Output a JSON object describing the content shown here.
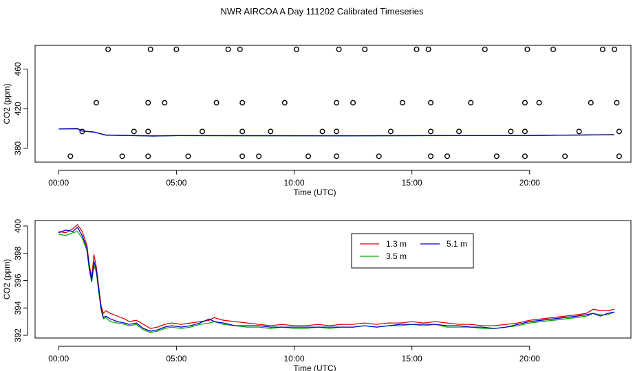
{
  "title": "NWR AIRCOA A  Day 111202  Calibrated Timeseries",
  "chart_data": [
    {
      "type": "scatter",
      "xlabel": "Time (UTC)",
      "ylabel": "CO2 (ppm)",
      "xlim": [
        -1.0,
        24.3
      ],
      "ylim": [
        366,
        484
      ],
      "xticks": [
        0,
        5,
        10,
        15,
        20
      ],
      "xtick_labels": [
        "00:00",
        "05:00",
        "10:00",
        "15:00",
        "20:00"
      ],
      "yticks": [
        380,
        420,
        460
      ],
      "yline_value": 392.9,
      "line_series": [
        {
          "name": "1.3 m",
          "color": "#e00000",
          "x": [
            0,
            0.8,
            1.0,
            1.5,
            2.0,
            3.0,
            4.0,
            5.0,
            8.0,
            12.0,
            16.0,
            20.0,
            23.6
          ],
          "y": [
            399.5,
            400.1,
            397.5,
            396.5,
            393.5,
            393.0,
            392.6,
            392.9,
            392.8,
            392.7,
            392.9,
            393.0,
            393.8
          ]
        },
        {
          "name": "3.5 m",
          "color": "#00b000",
          "x": [
            0,
            0.8,
            1.0,
            1.5,
            2.0,
            3.0,
            4.0,
            5.0,
            8.0,
            12.0,
            16.0,
            20.0,
            23.6
          ],
          "y": [
            399.4,
            399.6,
            397.3,
            396.3,
            393.2,
            392.8,
            392.3,
            392.7,
            392.6,
            392.6,
            392.7,
            392.9,
            393.6
          ]
        },
        {
          "name": "5.1 m",
          "color": "#0000cc",
          "x": [
            0,
            0.8,
            1.0,
            1.5,
            2.0,
            3.0,
            4.0,
            5.0,
            8.0,
            12.0,
            16.0,
            20.0,
            23.6
          ],
          "y": [
            399.5,
            399.8,
            397.4,
            396.4,
            393.3,
            392.9,
            392.4,
            392.8,
            392.7,
            392.6,
            392.8,
            392.9,
            393.7
          ]
        }
      ],
      "points": [
        {
          "x": 0.5,
          "y": 372
        },
        {
          "x": 2.1,
          "y": 480
        },
        {
          "x": 2.7,
          "y": 372
        },
        {
          "x": 3.8,
          "y": 372
        },
        {
          "x": 3.9,
          "y": 480
        },
        {
          "x": 5.0,
          "y": 480
        },
        {
          "x": 5.5,
          "y": 372
        },
        {
          "x": 7.2,
          "y": 480
        },
        {
          "x": 7.7,
          "y": 480
        },
        {
          "x": 7.8,
          "y": 372
        },
        {
          "x": 8.5,
          "y": 372
        },
        {
          "x": 10.1,
          "y": 480
        },
        {
          "x": 10.6,
          "y": 372
        },
        {
          "x": 11.8,
          "y": 372
        },
        {
          "x": 11.9,
          "y": 480
        },
        {
          "x": 13.0,
          "y": 480
        },
        {
          "x": 13.6,
          "y": 372
        },
        {
          "x": 15.2,
          "y": 480
        },
        {
          "x": 15.7,
          "y": 480
        },
        {
          "x": 15.8,
          "y": 372
        },
        {
          "x": 16.5,
          "y": 372
        },
        {
          "x": 18.1,
          "y": 480
        },
        {
          "x": 18.6,
          "y": 372
        },
        {
          "x": 19.8,
          "y": 372
        },
        {
          "x": 19.9,
          "y": 480
        },
        {
          "x": 21.0,
          "y": 480
        },
        {
          "x": 21.5,
          "y": 372
        },
        {
          "x": 23.1,
          "y": 480
        },
        {
          "x": 23.6,
          "y": 480
        },
        {
          "x": 23.8,
          "y": 372
        },
        {
          "x": 1.6,
          "y": 426
        },
        {
          "x": 3.8,
          "y": 426
        },
        {
          "x": 4.5,
          "y": 426
        },
        {
          "x": 6.7,
          "y": 426
        },
        {
          "x": 7.8,
          "y": 426
        },
        {
          "x": 9.6,
          "y": 426
        },
        {
          "x": 11.8,
          "y": 426
        },
        {
          "x": 12.5,
          "y": 426
        },
        {
          "x": 14.6,
          "y": 426
        },
        {
          "x": 15.8,
          "y": 426
        },
        {
          "x": 17.5,
          "y": 426
        },
        {
          "x": 19.8,
          "y": 426
        },
        {
          "x": 20.4,
          "y": 426
        },
        {
          "x": 22.6,
          "y": 426
        },
        {
          "x": 23.7,
          "y": 426
        },
        {
          "x": 1.0,
          "y": 397
        },
        {
          "x": 3.2,
          "y": 397
        },
        {
          "x": 3.8,
          "y": 397
        },
        {
          "x": 6.1,
          "y": 397
        },
        {
          "x": 7.8,
          "y": 397
        },
        {
          "x": 9.0,
          "y": 397
        },
        {
          "x": 11.2,
          "y": 397
        },
        {
          "x": 11.8,
          "y": 397
        },
        {
          "x": 14.1,
          "y": 397
        },
        {
          "x": 15.8,
          "y": 397
        },
        {
          "x": 17.0,
          "y": 397
        },
        {
          "x": 19.2,
          "y": 397
        },
        {
          "x": 19.8,
          "y": 397
        },
        {
          "x": 22.1,
          "y": 397
        },
        {
          "x": 23.8,
          "y": 397
        }
      ]
    },
    {
      "type": "line",
      "xlabel": "Time (UTC)",
      "ylabel": "CO2 (ppm)",
      "xlim": [
        -1.0,
        24.3
      ],
      "ylim": [
        391.8,
        400.4
      ],
      "xticks": [
        0,
        5,
        10,
        15,
        20
      ],
      "xtick_labels": [
        "00:00",
        "05:00",
        "10:00",
        "15:00",
        "20:00"
      ],
      "yticks": [
        392,
        394,
        396,
        398,
        400
      ],
      "legend": "top-center",
      "series": [
        {
          "name": "1.3 m",
          "color": "#e00000",
          "x": [
            0.0,
            0.3,
            0.6,
            0.8,
            1.0,
            1.2,
            1.3,
            1.4,
            1.5,
            1.6,
            1.7,
            1.8,
            1.9,
            2.0,
            2.2,
            2.5,
            2.8,
            3.0,
            3.3,
            3.6,
            3.9,
            4.2,
            4.5,
            4.8,
            5.2,
            5.6,
            6.0,
            6.4,
            6.6,
            7.0,
            7.5,
            8.0,
            8.5,
            9.0,
            9.5,
            10.0,
            10.5,
            11.0,
            11.5,
            12.0,
            12.5,
            13.0,
            13.5,
            14.0,
            14.5,
            15.0,
            15.5,
            16.0,
            16.5,
            17.0,
            17.5,
            18.0,
            18.5,
            19.0,
            19.5,
            20.0,
            20.5,
            21.0,
            21.5,
            22.0,
            22.4,
            22.7,
            23.0,
            23.3,
            23.6
          ],
          "y": [
            399.6,
            399.5,
            399.8,
            400.1,
            399.6,
            398.6,
            397.2,
            396.2,
            397.9,
            397.0,
            395.6,
            394.2,
            393.6,
            393.8,
            393.6,
            393.4,
            393.2,
            393.0,
            393.1,
            392.8,
            392.5,
            392.6,
            392.8,
            392.9,
            392.8,
            392.9,
            393.0,
            393.1,
            393.3,
            393.1,
            393.0,
            392.9,
            392.8,
            392.7,
            392.8,
            392.7,
            392.7,
            392.8,
            392.7,
            392.8,
            392.8,
            392.9,
            392.8,
            392.9,
            392.9,
            393.0,
            392.9,
            393.0,
            392.9,
            392.8,
            392.8,
            392.7,
            392.7,
            392.8,
            392.9,
            393.1,
            393.2,
            393.3,
            393.4,
            393.5,
            393.6,
            393.9,
            393.8,
            393.8,
            393.9
          ]
        },
        {
          "name": "3.5 m",
          "color": "#00b000",
          "x": [
            0.0,
            0.3,
            0.6,
            0.8,
            1.0,
            1.2,
            1.3,
            1.4,
            1.5,
            1.6,
            1.7,
            1.8,
            1.9,
            2.0,
            2.2,
            2.5,
            2.8,
            3.0,
            3.3,
            3.6,
            3.9,
            4.2,
            4.5,
            4.8,
            5.2,
            5.6,
            6.0,
            6.4,
            6.6,
            7.0,
            7.5,
            8.0,
            8.5,
            9.0,
            9.5,
            10.0,
            10.5,
            11.0,
            11.5,
            12.0,
            12.5,
            13.0,
            13.5,
            14.0,
            14.5,
            15.0,
            15.5,
            16.0,
            16.5,
            17.0,
            17.5,
            18.0,
            18.5,
            19.0,
            19.5,
            20.0,
            20.5,
            21.0,
            21.5,
            22.0,
            22.4,
            22.7,
            23.0,
            23.3,
            23.6
          ],
          "y": [
            399.4,
            399.3,
            399.5,
            399.6,
            399.1,
            398.2,
            396.8,
            395.9,
            397.1,
            396.6,
            395.2,
            393.9,
            393.2,
            393.3,
            393.0,
            392.9,
            392.8,
            392.7,
            392.8,
            392.4,
            392.2,
            392.3,
            392.5,
            392.6,
            392.5,
            392.6,
            392.8,
            392.9,
            393.0,
            392.8,
            392.7,
            392.6,
            392.6,
            392.5,
            392.6,
            392.5,
            392.5,
            392.6,
            392.5,
            392.6,
            392.6,
            392.7,
            392.6,
            392.7,
            392.7,
            392.8,
            392.7,
            392.8,
            392.6,
            392.6,
            392.6,
            392.5,
            392.5,
            392.6,
            392.7,
            392.9,
            393.0,
            393.1,
            393.2,
            393.3,
            393.4,
            393.6,
            393.5,
            393.5,
            393.7
          ]
        },
        {
          "name": "5.1 m",
          "color": "#0000cc",
          "x": [
            0.0,
            0.3,
            0.6,
            0.8,
            1.0,
            1.2,
            1.3,
            1.4,
            1.5,
            1.6,
            1.7,
            1.8,
            1.9,
            2.0,
            2.2,
            2.5,
            2.8,
            3.0,
            3.3,
            3.6,
            3.9,
            4.2,
            4.5,
            4.8,
            5.2,
            5.6,
            6.0,
            6.4,
            6.6,
            7.0,
            7.5,
            8.0,
            8.5,
            9.0,
            9.5,
            10.0,
            10.5,
            11.0,
            11.5,
            12.0,
            12.5,
            13.0,
            13.5,
            14.0,
            14.5,
            15.0,
            15.5,
            16.0,
            16.5,
            17.0,
            17.5,
            18.0,
            18.5,
            19.0,
            19.5,
            20.0,
            20.5,
            21.0,
            21.5,
            22.0,
            22.4,
            22.7,
            23.0,
            23.3,
            23.6
          ],
          "y": [
            399.5,
            399.7,
            399.6,
            399.9,
            399.3,
            398.4,
            397.0,
            396.0,
            397.4,
            396.8,
            395.4,
            394.0,
            393.3,
            393.4,
            393.2,
            393.0,
            392.9,
            392.8,
            392.9,
            392.5,
            392.3,
            392.4,
            392.6,
            392.7,
            392.6,
            392.7,
            392.9,
            393.2,
            393.0,
            392.9,
            392.7,
            392.7,
            392.7,
            392.6,
            392.6,
            392.6,
            392.6,
            392.6,
            392.6,
            392.6,
            392.6,
            392.7,
            392.6,
            392.7,
            392.8,
            392.8,
            392.8,
            392.8,
            392.7,
            392.7,
            392.6,
            392.6,
            392.5,
            392.6,
            392.8,
            393.0,
            393.1,
            393.2,
            393.3,
            393.4,
            393.5,
            393.6,
            393.4,
            393.6,
            393.7
          ]
        }
      ]
    }
  ]
}
